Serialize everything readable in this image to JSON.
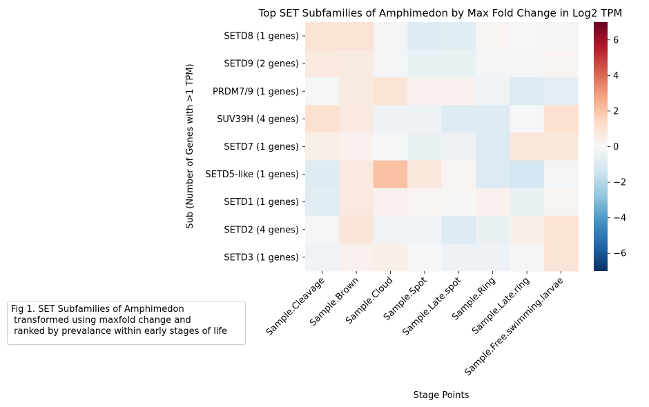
{
  "chart_data": {
    "type": "heatmap",
    "title": "Top SET Subfamilies of Amphimedon by Max Fold Change in Log2 TPM",
    "xlabel": "Stage Points",
    "ylabel": "Sub (Number of Genes with >1 TPM)",
    "columns": [
      "Sample.Cleavage",
      "Sample.Brown",
      "Sample.Cloud",
      "Sample.Spot",
      "Sample.Late.spot",
      "Sample.Ring",
      "Sample.Late.ring",
      "Sample.Free.swimming.larvae"
    ],
    "rows": [
      "SETD8 (1 genes)",
      "SETD9 (2 genes)",
      "PRDM7/9 (1 genes)",
      "SUV39H (4 genes)",
      "SETD7 (1 genes)",
      "SETD5-like (1 genes)",
      "SETD1 (1 genes)",
      "SETD2 (4 genes)",
      "SETD3 (1 genes)"
    ],
    "values": [
      [
        1.0,
        1.0,
        -0.2,
        -0.9,
        -0.8,
        0.2,
        -0.1,
        -0.2
      ],
      [
        0.7,
        0.6,
        -0.2,
        -0.5,
        -0.5,
        -0.2,
        -0.2,
        0.2
      ],
      [
        -0.1,
        0.6,
        1.0,
        0.3,
        0.3,
        -0.3,
        -1.0,
        -0.7
      ],
      [
        1.1,
        0.7,
        -0.4,
        -0.4,
        -0.9,
        -0.9,
        -0.1,
        1.1
      ],
      [
        0.4,
        0.3,
        -0.1,
        -0.5,
        -0.4,
        -1.0,
        0.8,
        0.8
      ],
      [
        -0.9,
        0.7,
        2.1,
        0.8,
        0.2,
        -1.0,
        -1.3,
        -0.2
      ],
      [
        -0.8,
        0.7,
        0.3,
        0.2,
        0.1,
        0.3,
        -0.5,
        0.2
      ],
      [
        -0.1,
        0.9,
        -0.3,
        -0.3,
        -1.0,
        -0.5,
        0.4,
        1.0
      ],
      [
        -0.3,
        0.3,
        0.4,
        -0.1,
        -0.4,
        -0.4,
        0.1,
        1.0
      ]
    ],
    "vmin": -7,
    "vmax": 7,
    "colormap": "RdBu_r",
    "colorbar_ticks": [
      6,
      4,
      2,
      0,
      -2,
      -4,
      -6
    ],
    "colorbar_tick_labels": [
      "6",
      "4",
      "2",
      "0",
      "−2",
      "−4",
      "−6"
    ]
  },
  "caption": "Fig 1. SET Subfamilies of Amphimedon\n transformed using maxfold change and\n ranked by prevalance within early stages of life"
}
